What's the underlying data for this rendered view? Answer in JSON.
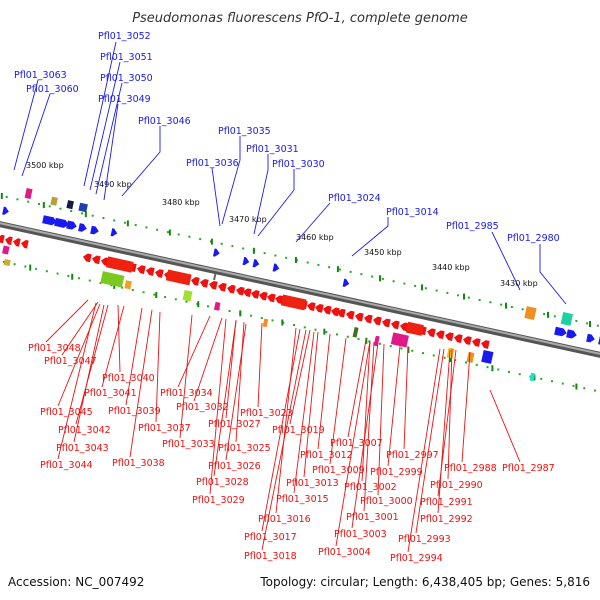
{
  "title": "Pseudomonas fluorescens PfO-1, complete genome",
  "footer": {
    "accession": "Accession: NC_007492",
    "summary": "Topology: circular; Length: 6,438,405 bp; Genes: 5,816"
  },
  "colors": {
    "forward_strand": "#1a1aee",
    "reverse_strand": "#ee1111",
    "backbone": "#888888",
    "tick": "#118811",
    "tick_dot": "#22aa22"
  },
  "scale_labels": [
    "3500 kbp",
    "3490 kbp",
    "3480 kbp",
    "3470 kbp",
    "3460 kbp",
    "3450 kbp",
    "3440 kbp",
    "3430 kbp"
  ],
  "genes_forward": [
    "Pfl01_3052",
    "Pfl01_3051",
    "Pfl01_3050",
    "Pfl01_3049",
    "Pfl01_3063",
    "Pfl01_3060",
    "Pfl01_3046",
    "Pfl01_3035",
    "Pfl01_3031",
    "Pfl01_3036",
    "Pfl01_3030",
    "Pfl01_3024",
    "Pfl01_3014",
    "Pfl01_2985",
    "Pfl01_2980"
  ],
  "genes_reverse": [
    "Pfl01_3048",
    "Pfl01_3047",
    "Pfl01_3040",
    "Pfl01_3041",
    "Pfl01_3034",
    "Pfl01_3045",
    "Pfl01_3039",
    "Pfl01_3032",
    "Pfl01_3023",
    "Pfl01_3042",
    "Pfl01_3037",
    "Pfl01_3027",
    "Pfl01_3043",
    "Pfl01_3033",
    "Pfl01_3025",
    "Pfl01_3019",
    "Pfl01_3044",
    "Pfl01_3038",
    "Pfl01_3026",
    "Pfl01_3012",
    "Pfl01_3007",
    "Pfl01_2997",
    "Pfl01_3009",
    "Pfl01_2999",
    "Pfl01_2988",
    "Pfl01_2987",
    "Pfl01_3028",
    "Pfl01_3013",
    "Pfl01_3002",
    "Pfl01_2990",
    "Pfl01_3029",
    "Pfl01_3015",
    "Pfl01_3000",
    "Pfl01_2991",
    "Pfl01_3016",
    "Pfl01_3001",
    "Pfl01_2992",
    "Pfl01_3017",
    "Pfl01_3003",
    "Pfl01_2993",
    "Pfl01_3018",
    "Pfl01_3004",
    "Pfl01_2994"
  ]
}
